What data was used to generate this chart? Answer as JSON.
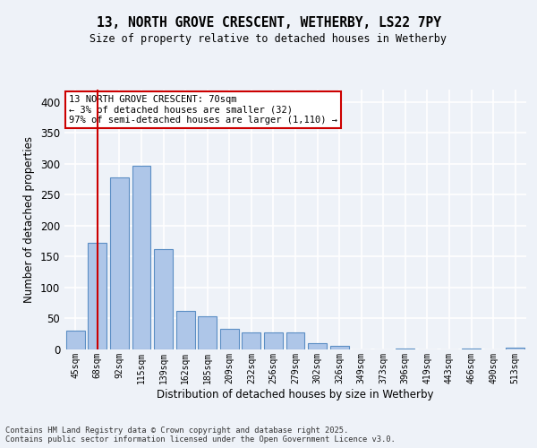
{
  "title": "13, NORTH GROVE CRESCENT, WETHERBY, LS22 7PY",
  "subtitle": "Size of property relative to detached houses in Wetherby",
  "xlabel": "Distribution of detached houses by size in Wetherby",
  "ylabel": "Number of detached properties",
  "bar_labels": [
    "45sqm",
    "68sqm",
    "92sqm",
    "115sqm",
    "139sqm",
    "162sqm",
    "185sqm",
    "209sqm",
    "232sqm",
    "256sqm",
    "279sqm",
    "302sqm",
    "326sqm",
    "349sqm",
    "373sqm",
    "396sqm",
    "419sqm",
    "443sqm",
    "466sqm",
    "490sqm",
    "513sqm"
  ],
  "bar_values": [
    30,
    172,
    278,
    297,
    162,
    62,
    53,
    34,
    28,
    27,
    27,
    10,
    6,
    0,
    0,
    1,
    0,
    0,
    2,
    0,
    3
  ],
  "bar_color": "#aec6e8",
  "bar_edge_color": "#5b8ec4",
  "vline_x": 1,
  "vline_color": "#cc0000",
  "annotation_text": "13 NORTH GROVE CRESCENT: 70sqm\n← 3% of detached houses are smaller (32)\n97% of semi-detached houses are larger (1,110) →",
  "annotation_box_color": "#ffffff",
  "annotation_box_edge_color": "#cc0000",
  "ylim": [
    0,
    420
  ],
  "yticks": [
    0,
    50,
    100,
    150,
    200,
    250,
    300,
    350,
    400
  ],
  "background_color": "#eef2f8",
  "grid_color": "#ffffff",
  "footer": "Contains HM Land Registry data © Crown copyright and database right 2025.\nContains public sector information licensed under the Open Government Licence v3.0."
}
